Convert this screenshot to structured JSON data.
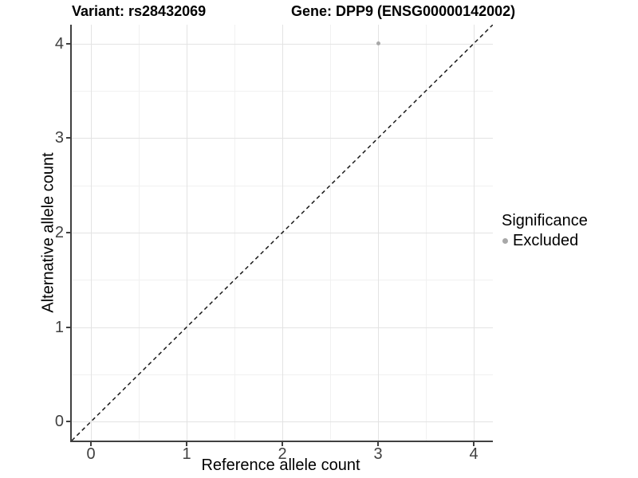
{
  "chart_data": {
    "type": "scatter",
    "titles": {
      "left": "Variant: rs28432069",
      "right": "Gene: DPP9 (ENSG00000142002)"
    },
    "xlabel": "Reference allele count",
    "ylabel": "Alternative allele count",
    "xlim": [
      -0.2,
      4.2
    ],
    "ylim": [
      -0.2,
      4.2
    ],
    "x_ticks": [
      0,
      1,
      2,
      3,
      4
    ],
    "y_ticks": [
      0,
      1,
      2,
      3,
      4
    ],
    "x_minor_ticks": [
      0.5,
      1.5,
      2.5,
      3.5
    ],
    "y_minor_ticks": [
      0.5,
      1.5,
      2.5,
      3.5
    ],
    "grid": {
      "major": true,
      "minor": true
    },
    "legend": {
      "position": "right",
      "title": "Significance",
      "entries": [
        {
          "label": "Excluded",
          "color": "#a8a8a8",
          "shape": "circle"
        }
      ]
    },
    "series": [
      {
        "name": "Excluded",
        "color": "#a8a8a8",
        "point_radius": 2.5,
        "points": [
          [
            3,
            4
          ]
        ]
      }
    ],
    "reference_line": {
      "kind": "identity",
      "slope": 1,
      "intercept": 0,
      "style": "dashed",
      "color": "#1a1a1a"
    }
  },
  "colors": {
    "axis_line": "#404040",
    "tick_label": "#404040",
    "grid_major": "#e3e3e3",
    "grid_minor": "#f1f1f1",
    "background": "#ffffff"
  }
}
